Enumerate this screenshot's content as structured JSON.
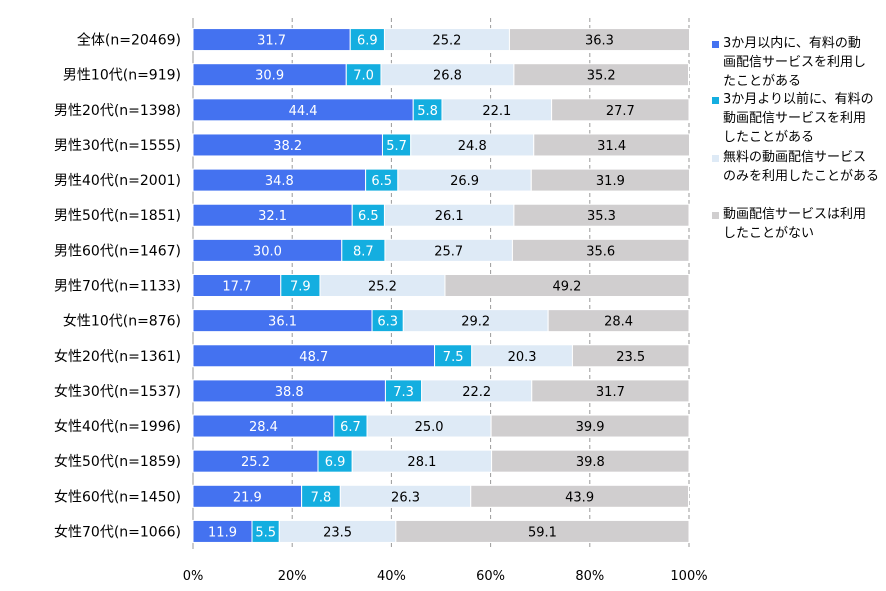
{
  "chart_data": {
    "type": "bar",
    "orientation": "horizontal",
    "stacked": true,
    "percent": true,
    "categories": [
      "全体(n=20469)",
      "男性10代(n=919)",
      "男性20代(n=1398)",
      "男性30代(n=1555)",
      "男性40代(n=2001)",
      "男性50代(n=1851)",
      "男性60代(n=1467)",
      "男性70代(n=1133)",
      "女性10代(n=876)",
      "女性20代(n=1361)",
      "女性30代(n=1537)",
      "女性40代(n=1996)",
      "女性50代(n=1859)",
      "女性60代(n=1450)",
      "女性70代(n=1066)"
    ],
    "series": [
      {
        "name": "3か月以内に、有料の動画配信サービスを利用したことがある",
        "color": "#4472f0",
        "values": [
          31.7,
          30.9,
          44.4,
          38.2,
          34.8,
          32.1,
          30.0,
          17.7,
          36.1,
          48.7,
          38.8,
          28.4,
          25.2,
          21.9,
          11.9
        ],
        "labels": [
          "31.7",
          "30.9",
          "44.4",
          "38.2",
          "34.8",
          "32.1",
          "30.0",
          "17.7",
          "36.1",
          "48.7",
          "38.8",
          "28.4",
          "25.2",
          "21.9",
          "11.9"
        ]
      },
      {
        "name": "3か月より以前に、有料の動画配信サービスを利用したことがある",
        "color": "#14aee0",
        "values": [
          6.9,
          7.0,
          5.8,
          5.7,
          6.5,
          6.5,
          8.7,
          7.9,
          6.3,
          7.5,
          7.3,
          6.7,
          6.9,
          7.8,
          5.5
        ],
        "labels": [
          "6.9",
          "7.0",
          "5.8",
          "5.7",
          "6.5",
          "6.5",
          "8.7",
          "7.9",
          "6.3",
          "7.5",
          "7.3",
          "6.7",
          "6.9",
          "7.8",
          "5.5"
        ]
      },
      {
        "name": "無料の動画配信サービスのみを利用したことがある",
        "color": "#deeaf6",
        "values": [
          25.2,
          26.8,
          22.1,
          24.8,
          26.9,
          26.1,
          25.7,
          25.2,
          29.2,
          20.3,
          22.2,
          25.0,
          28.1,
          26.3,
          23.5
        ],
        "labels": [
          "25.2",
          "26.8",
          "22.1",
          "24.8",
          "26.9",
          "26.1",
          "25.7",
          "25.2",
          "29.2",
          "20.3",
          "22.2",
          "25.0",
          "28.1",
          "26.3",
          "23.5"
        ]
      },
      {
        "name": "動画配信サービスは利用したことがない",
        "color": "#d0cecf",
        "values": [
          36.3,
          35.2,
          27.7,
          31.4,
          31.9,
          35.3,
          35.6,
          49.2,
          28.4,
          23.5,
          31.7,
          39.9,
          39.8,
          43.9,
          59.1
        ],
        "labels": [
          "36.3",
          "35.2",
          "27.7",
          "31.4",
          "31.9",
          "35.3",
          "35.6",
          "49.2",
          "28.4",
          "23.5",
          "31.7",
          "39.9",
          "39.8",
          "43.9",
          "59.1"
        ]
      }
    ],
    "xlim": [
      0,
      100
    ],
    "xticks": [
      "0%",
      "20%",
      "40%",
      "60%",
      "80%",
      "100%"
    ],
    "grid": "vertical-dashed",
    "legend_position": "right",
    "legend": [
      {
        "lines": [
          "3か月以内に、有料の動",
          "画配信サービスを利用し",
          "たことがある"
        ]
      },
      {
        "lines": [
          "3か月より以前に、有料の",
          "動画配信サービスを利用",
          "したことがある"
        ]
      },
      {
        "lines": [
          "無料の動画配信サービス",
          "のみを利用したことがある"
        ]
      },
      {
        "lines": [
          "動画配信サービスは利用",
          "したことがない"
        ]
      }
    ]
  }
}
